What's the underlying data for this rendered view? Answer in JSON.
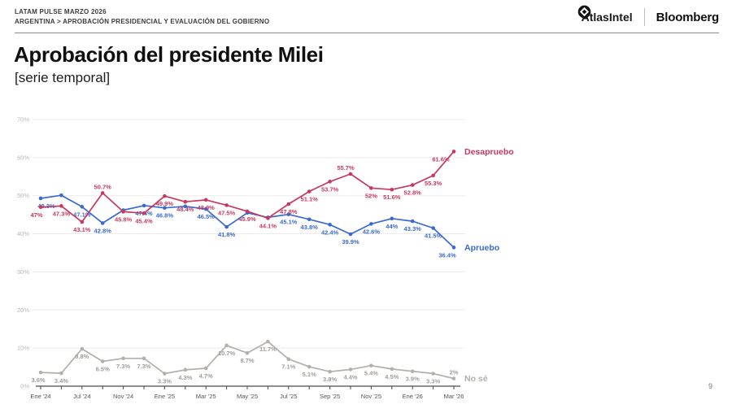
{
  "header": {
    "line1": "LATAM PULSE MARZO 2026",
    "line2": "ARGENTINA > APROBACIÓN PRESIDENCIAL Y EVALUACIÓN DEL GOBIERNO"
  },
  "brand": {
    "atlas": "AtlasIntel",
    "bloomberg": "Bloomberg"
  },
  "title": "Aprobación del presidente Milei",
  "subtitle": "[serie temporal]",
  "page_number": "9",
  "chart_data": {
    "type": "line",
    "title": "Aprobación del presidente Milei [serie temporal]",
    "ylim": [
      0,
      70
    ],
    "grid": true,
    "legend_position": "end-of-line",
    "n_points": 21,
    "y_ticks": [
      {
        "v": 0,
        "label": "0%"
      },
      {
        "v": 10,
        "label": "10%"
      },
      {
        "v": 20,
        "label": "20%"
      },
      {
        "v": 30,
        "label": "30%"
      },
      {
        "v": 40,
        "label": "40%"
      },
      {
        "v": 50,
        "label": "50%"
      },
      {
        "v": 60,
        "label": "60%"
      },
      {
        "v": 70,
        "label": "70%"
      }
    ],
    "x_ticks": [
      {
        "index": 0,
        "label": "Ene '24"
      },
      {
        "index": 2,
        "label": "Jul '24"
      },
      {
        "index": 4,
        "label": "Nov '24"
      },
      {
        "index": 6,
        "label": "Ene '25"
      },
      {
        "index": 8,
        "label": "Mar '25"
      },
      {
        "index": 10,
        "label": "May '25"
      },
      {
        "index": 12,
        "label": "Jul '25"
      },
      {
        "index": 14,
        "label": "Sep '25"
      },
      {
        "index": 16,
        "label": "Nov '25"
      },
      {
        "index": 18,
        "label": "Ene '26"
      },
      {
        "index": 20,
        "label": "Mar '26"
      }
    ],
    "series": [
      {
        "name": "No sé",
        "color": "#b3b0ac",
        "label_color": "#a19e9a",
        "values": [
          3.6,
          3.4,
          9.8,
          6.5,
          7.3,
          7.3,
          3.3,
          4.3,
          4.7,
          10.7,
          8.7,
          11.7,
          7.1,
          5.1,
          3.8,
          4.4,
          5.4,
          4.5,
          3.9,
          3.3,
          2
        ],
        "labels": [
          "3.6%",
          "3.4%",
          "9.8%",
          "6.5%",
          "7.3%",
          "7.3%",
          "3.3%",
          "4.3%",
          "4.7%",
          "10.7%",
          "8.7%",
          "11.7%",
          "7.1%",
          "5.1%",
          "3.8%",
          "4.4%",
          "5.4%",
          "4.5%",
          "3.9%",
          "3.3%",
          "2%"
        ],
        "label_side": {
          "20": "a"
        },
        "label_dx": {
          "0": -3
        }
      },
      {
        "name": "Apruebo",
        "color": "#3a6ad0",
        "label_color": "#3a6ad0",
        "values": [
          49.3,
          50.1,
          47.1,
          42.8,
          46.2,
          47.4,
          46.8,
          47.2,
          46.5,
          41.8,
          45.5,
          44.3,
          45.1,
          43.8,
          42.4,
          39.9,
          42.6,
          44,
          43.3,
          41.5,
          36.4
        ],
        "labels": [
          "49.3%",
          null,
          "47.1%",
          "42.8%",
          null,
          "47.4%",
          "46.8%",
          null,
          "46.5%",
          "41.8%",
          null,
          null,
          "45.1%",
          "43.8%",
          "42.4%",
          "39.9%",
          "42.6%",
          "44%",
          "43.3%",
          "41.5%",
          "36.4%"
        ],
        "label_side": {},
        "label_dx": {
          "0": 7,
          "20": -8
        }
      },
      {
        "name": "Desapruebo",
        "color": "#c8385e",
        "label_color": "#c8385e",
        "values": [
          47,
          47.3,
          43.1,
          50.7,
          45.8,
          45.4,
          49.9,
          48.4,
          48.9,
          47.5,
          45.9,
          44.1,
          47.8,
          51.1,
          53.7,
          55.7,
          52,
          51.6,
          52.8,
          55.3,
          61.6
        ],
        "labels": [
          "47%",
          "47.3%",
          "43.1%",
          "50.7%",
          "45.8%",
          "45.4%",
          "49.9%",
          "48.4%",
          "48.9%",
          "47.5%",
          "45.9%",
          "44.1%",
          "47.8%",
          "51.1%",
          "53.7%",
          "55.7%",
          "52%",
          "51.6%",
          "52.8%",
          "55.3%",
          "61.6%"
        ],
        "label_side": {
          "3": "a",
          "15": "a"
        },
        "label_dx": {
          "0": -5,
          "15": -6,
          "20": -16
        }
      }
    ]
  }
}
